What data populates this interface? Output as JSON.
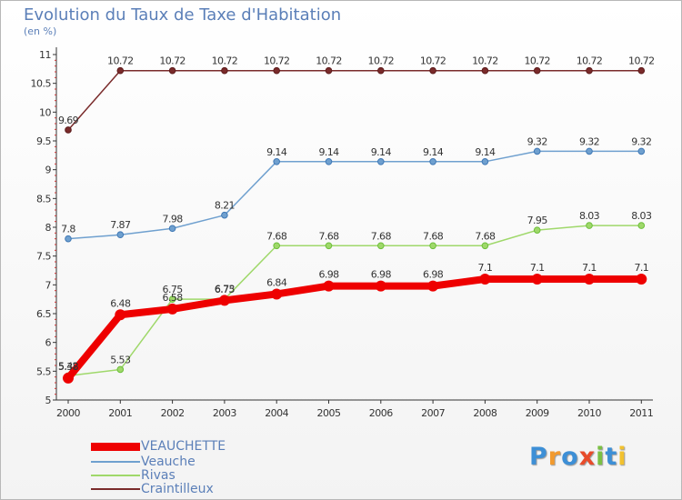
{
  "chart_data": {
    "type": "line",
    "title": "Evolution du Taux de Taxe d'Habitation",
    "subtitle": "(en %)",
    "xlabel": "",
    "ylabel": "",
    "ylim": [
      5,
      11
    ],
    "categories": [
      "2000",
      "2001",
      "2002",
      "2003",
      "2004",
      "2005",
      "2006",
      "2007",
      "2008",
      "2009",
      "2010",
      "2011"
    ],
    "yticks": [
      {
        "value": 5,
        "label": "5"
      },
      {
        "value": 5.5,
        "label": "5.5"
      },
      {
        "value": 6,
        "label": "6"
      },
      {
        "value": 6.5,
        "label": "6.5"
      },
      {
        "value": 7,
        "label": "7"
      },
      {
        "value": 7.5,
        "label": "7.5"
      },
      {
        "value": 8,
        "label": "8"
      },
      {
        "value": 8.5,
        "label": "8.5"
      },
      {
        "value": 9,
        "label": "9"
      },
      {
        "value": 9.5,
        "label": "9.5"
      },
      {
        "value": 10,
        "label": "10"
      },
      {
        "value": 10.5,
        "label": "10.5"
      },
      {
        "value": 11,
        "label": "11"
      }
    ],
    "series": [
      {
        "name": "Craintilleux",
        "color": "#7a2b2b",
        "labels": [
          "9.69",
          "10.72",
          "10.72",
          "10.72",
          "10.72",
          "10.72",
          "10.72",
          "10.72",
          "10.72",
          "10.72",
          "10.72",
          "10.72"
        ],
        "values": [
          9.69,
          10.72,
          10.72,
          10.72,
          10.72,
          10.72,
          10.72,
          10.72,
          10.72,
          10.72,
          10.72,
          10.72
        ]
      },
      {
        "name": "Veauche",
        "color": "#6fa0cf",
        "labels": [
          "7.8",
          "7.87",
          "7.98",
          "8.21",
          "9.14",
          "9.14",
          "9.14",
          "9.14",
          "9.14",
          "9.32",
          "9.32",
          "9.32"
        ],
        "values": [
          7.8,
          7.87,
          7.98,
          8.21,
          9.14,
          9.14,
          9.14,
          9.14,
          9.14,
          9.32,
          9.32,
          9.32
        ]
      },
      {
        "name": "Rivas",
        "color": "#9fd86a",
        "labels": [
          "5.42",
          "5.53",
          "6.75",
          "6.75",
          "7.68",
          "7.68",
          "7.68",
          "7.68",
          "7.68",
          "7.95",
          "8.03",
          "8.03"
        ],
        "values": [
          5.42,
          5.53,
          6.75,
          6.75,
          7.68,
          7.68,
          7.68,
          7.68,
          7.68,
          7.95,
          8.03,
          8.03
        ]
      },
      {
        "name": "VEAUCHETTE",
        "color": "#ee0000",
        "labels": [
          "5.38",
          "6.48",
          "6.58",
          "6.73",
          "6.84",
          "6.98",
          "6.98",
          "6.98",
          "7.1",
          "7.1",
          "7.1",
          "7.1"
        ],
        "values": [
          5.38,
          6.48,
          6.58,
          6.73,
          6.84,
          6.98,
          6.98,
          6.98,
          7.1,
          7.1,
          7.1,
          7.1
        ]
      }
    ],
    "legend": [
      {
        "name": "VEAUCHETTE",
        "color": "#ee0000"
      },
      {
        "name": "Veauche",
        "color": "#6fa0cf"
      },
      {
        "name": "Rivas",
        "color": "#9fd86a"
      },
      {
        "name": "Craintilleux",
        "color": "#7a2b2b"
      }
    ],
    "legend_position": "bottom-left",
    "grid": false
  },
  "logo": {
    "letters": [
      "P",
      "r",
      "o",
      "x",
      "i",
      "t",
      "i"
    ],
    "colors": [
      "#3d8fd6",
      "#f29a2e",
      "#3d8fd6",
      "#e84b2a",
      "#7bc043",
      "#3d8fd6",
      "#f2c12e"
    ]
  }
}
